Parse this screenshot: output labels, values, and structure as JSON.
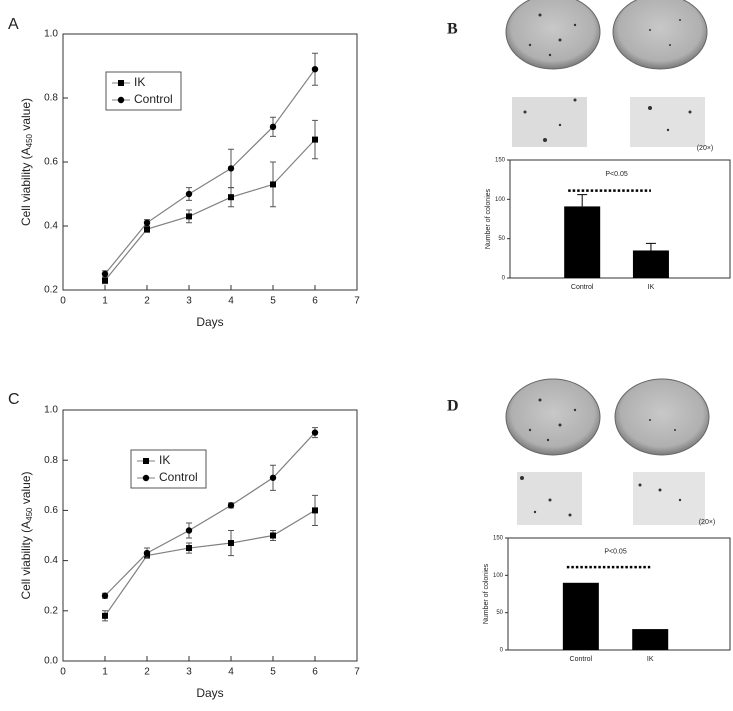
{
  "chart_data": [
    {
      "type": "line",
      "panel": "A",
      "xlabel": "Days",
      "ylabel": [
        "Cell viability (A",
        "450",
        " value)"
      ],
      "x": [
        1,
        2,
        3,
        4,
        5,
        6
      ],
      "xlim": [
        0,
        7
      ],
      "xticks": [
        0,
        1,
        2,
        3,
        4,
        5,
        6,
        7
      ],
      "ylim": [
        0.2,
        1.0
      ],
      "yticks": [
        0.2,
        0.4,
        0.6,
        0.8,
        {
          "value": 1.0,
          "label": "1.0"
        }
      ],
      "series": [
        {
          "name": "IK",
          "marker": "square",
          "color": "#000000",
          "line_color": "#808080",
          "values": [
            0.23,
            0.39,
            0.43,
            0.49,
            0.53,
            0.67
          ],
          "errors": [
            0.01,
            0.01,
            0.02,
            0.03,
            0.07,
            0.06
          ]
        },
        {
          "name": "Control",
          "marker": "circle",
          "color": "#000000",
          "line_color": "#808080",
          "values": [
            0.25,
            0.41,
            0.5,
            0.58,
            0.71,
            0.89
          ],
          "errors": [
            0.01,
            0.01,
            0.02,
            0.06,
            0.03,
            0.05
          ]
        }
      ]
    },
    {
      "type": "bar",
      "panel": "B",
      "magnification": "(20×)",
      "ylabel": "Number of colonies",
      "annotation": "P<0.05",
      "categories": [
        "Control",
        "IK"
      ],
      "values": [
        91,
        35
      ],
      "errors": [
        15,
        9
      ],
      "color": "#000000",
      "ylim": [
        0,
        150
      ],
      "yticks": [
        0,
        50,
        100,
        150
      ]
    },
    {
      "type": "line",
      "panel": "C",
      "xlabel": "Days",
      "ylabel": [
        "Cell viability (A",
        "450",
        " value)"
      ],
      "x": [
        1,
        2,
        3,
        4,
        5,
        6
      ],
      "xlim": [
        0,
        7
      ],
      "xticks": [
        0,
        1,
        2,
        3,
        4,
        5,
        6,
        7
      ],
      "ylim": [
        0,
        1.0
      ],
      "yticks": [
        {
          "value": 0,
          "label": "0.0"
        },
        0.2,
        0.4,
        0.6,
        0.8,
        {
          "value": 1.0,
          "label": "1.0"
        }
      ],
      "series": [
        {
          "name": "IK",
          "marker": "square",
          "color": "#000000",
          "line_color": "#808080",
          "values": [
            0.18,
            0.42,
            0.45,
            0.47,
            0.5,
            0.6
          ],
          "errors": [
            0.02,
            0.01,
            0.02,
            0.05,
            0.02,
            0.06
          ]
        },
        {
          "name": "Control",
          "marker": "circle",
          "color": "#000000",
          "line_color": "#808080",
          "values": [
            0.26,
            0.43,
            0.52,
            0.62,
            0.73,
            0.91
          ],
          "errors": [
            0.01,
            0.02,
            0.03,
            0.01,
            0.05,
            0.02
          ]
        }
      ]
    },
    {
      "type": "bar",
      "panel": "D",
      "magnification": "(20×)",
      "ylabel": "Number of colonies",
      "annotation": "P<0.05",
      "categories": [
        "Control",
        "IK"
      ],
      "values": [
        90,
        28
      ],
      "color": "#000000",
      "ylim": [
        0,
        150
      ],
      "yticks": [
        0,
        50,
        100,
        150
      ]
    }
  ]
}
